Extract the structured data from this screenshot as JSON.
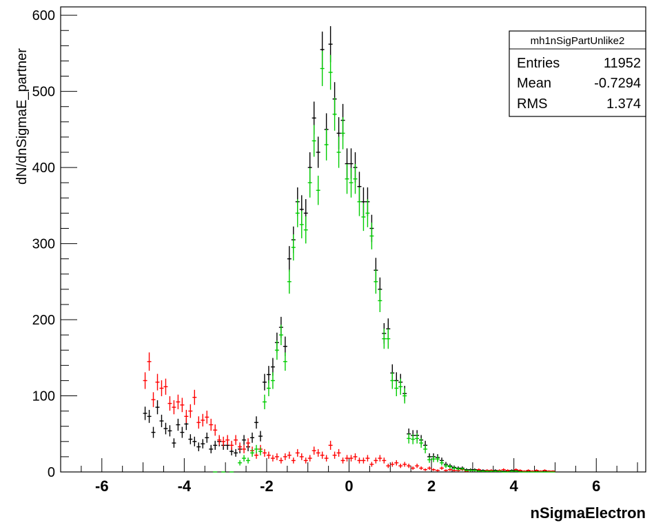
{
  "chart_data": {
    "type": "scatter",
    "xlabel": "nSigmaElectron",
    "ylabel": "dN/dnSigmaE_partner",
    "xlim": [
      -7,
      7.2
    ],
    "ylim": [
      0,
      600
    ],
    "x_ticks": [
      -6,
      -4,
      -2,
      0,
      2,
      4,
      6
    ],
    "y_ticks": [
      0,
      100,
      200,
      300,
      400,
      500,
      600
    ],
    "grid": false,
    "stats_box": {
      "title": "mh1nSigPartUnlike2",
      "rows": [
        {
          "label": "Entries",
          "value": "11952"
        },
        {
          "label": "Mean",
          "value": "-0.7294"
        },
        {
          "label": "RMS",
          "value": "1.374"
        }
      ]
    },
    "series": [
      {
        "color": "#000000",
        "points": [
          [
            -4.95,
            77
          ],
          [
            -4.85,
            73
          ],
          [
            -4.75,
            52
          ],
          [
            -4.65,
            85
          ],
          [
            -4.55,
            67
          ],
          [
            -4.45,
            57
          ],
          [
            -4.35,
            54
          ],
          [
            -4.25,
            38
          ],
          [
            -4.15,
            62
          ],
          [
            -4.05,
            52
          ],
          [
            -3.95,
            63
          ],
          [
            -3.85,
            43
          ],
          [
            -3.75,
            40
          ],
          [
            -3.65,
            33
          ],
          [
            -3.55,
            37
          ],
          [
            -3.45,
            45
          ],
          [
            -3.35,
            30
          ],
          [
            -3.25,
            35
          ],
          [
            -3.15,
            40
          ],
          [
            -3.05,
            35
          ],
          [
            -2.95,
            35
          ],
          [
            -2.85,
            27
          ],
          [
            -2.75,
            25
          ],
          [
            -2.65,
            30
          ],
          [
            -2.55,
            42
          ],
          [
            -2.45,
            33
          ],
          [
            -2.35,
            45
          ],
          [
            -2.25,
            65
          ],
          [
            -2.15,
            47
          ],
          [
            -2.05,
            118
          ],
          [
            -1.95,
            128
          ],
          [
            -1.85,
            138
          ],
          [
            -1.75,
            170
          ],
          [
            -1.65,
            190
          ],
          [
            -1.55,
            165
          ],
          [
            -1.45,
            280
          ],
          [
            -1.35,
            305
          ],
          [
            -1.25,
            355
          ],
          [
            -1.15,
            345
          ],
          [
            -1.05,
            340
          ],
          [
            -0.95,
            400
          ],
          [
            -0.85,
            465
          ],
          [
            -0.75,
            420
          ],
          [
            -0.65,
            555
          ],
          [
            -0.55,
            450
          ],
          [
            -0.45,
            562
          ],
          [
            -0.35,
            490
          ],
          [
            -0.25,
            445
          ],
          [
            -0.15,
            462
          ],
          [
            -0.05,
            405
          ],
          [
            0.05,
            405
          ],
          [
            0.15,
            400
          ],
          [
            0.25,
            375
          ],
          [
            0.35,
            355
          ],
          [
            0.45,
            355
          ],
          [
            0.55,
            320
          ],
          [
            0.65,
            265
          ],
          [
            0.75,
            240
          ],
          [
            0.85,
            182
          ],
          [
            0.95,
            188
          ],
          [
            1.05,
            130
          ],
          [
            1.15,
            120
          ],
          [
            1.25,
            118
          ],
          [
            1.35,
            103
          ],
          [
            1.45,
            50
          ],
          [
            1.55,
            48
          ],
          [
            1.65,
            48
          ],
          [
            1.75,
            42
          ],
          [
            1.85,
            35
          ],
          [
            1.95,
            20
          ],
          [
            2.05,
            20
          ],
          [
            2.15,
            19
          ],
          [
            2.25,
            15
          ],
          [
            2.35,
            10
          ],
          [
            2.45,
            8
          ],
          [
            2.55,
            6
          ],
          [
            2.65,
            5
          ],
          [
            2.75,
            5
          ],
          [
            2.85,
            3
          ],
          [
            2.95,
            3
          ],
          [
            3.05,
            3
          ],
          [
            3.15,
            2
          ],
          [
            3.25,
            2
          ],
          [
            3.35,
            2
          ],
          [
            3.45,
            2
          ],
          [
            3.55,
            2
          ],
          [
            3.65,
            1
          ],
          [
            3.75,
            1
          ],
          [
            3.85,
            1
          ],
          [
            3.95,
            2
          ],
          [
            4.05,
            2
          ],
          [
            4.15,
            1
          ],
          [
            4.25,
            1
          ],
          [
            4.35,
            1
          ],
          [
            4.45,
            1
          ],
          [
            4.55,
            1
          ],
          [
            4.65,
            1
          ],
          [
            4.75,
            1
          ],
          [
            4.85,
            1
          ],
          [
            4.95,
            1
          ]
        ]
      },
      {
        "color": "#ff0000",
        "points": [
          [
            -4.95,
            120
          ],
          [
            -4.85,
            145
          ],
          [
            -4.75,
            95
          ],
          [
            -4.65,
            118
          ],
          [
            -4.55,
            110
          ],
          [
            -4.45,
            112
          ],
          [
            -4.35,
            90
          ],
          [
            -4.25,
            85
          ],
          [
            -4.15,
            92
          ],
          [
            -4.05,
            88
          ],
          [
            -3.95,
            73
          ],
          [
            -3.85,
            80
          ],
          [
            -3.75,
            98
          ],
          [
            -3.65,
            65
          ],
          [
            -3.55,
            68
          ],
          [
            -3.45,
            72
          ],
          [
            -3.35,
            62
          ],
          [
            -3.25,
            55
          ],
          [
            -3.15,
            42
          ],
          [
            -3.05,
            40
          ],
          [
            -2.95,
            42
          ],
          [
            -2.85,
            35
          ],
          [
            -2.75,
            42
          ],
          [
            -2.65,
            33
          ],
          [
            -2.55,
            30
          ],
          [
            -2.45,
            38
          ],
          [
            -2.35,
            28
          ],
          [
            -2.25,
            22
          ],
          [
            -2.15,
            30
          ],
          [
            -2.05,
            25
          ],
          [
            -1.95,
            22
          ],
          [
            -1.85,
            18
          ],
          [
            -1.75,
            20
          ],
          [
            -1.65,
            15
          ],
          [
            -1.55,
            20
          ],
          [
            -1.45,
            22
          ],
          [
            -1.35,
            15
          ],
          [
            -1.25,
            25
          ],
          [
            -1.15,
            20
          ],
          [
            -1.05,
            15
          ],
          [
            -0.95,
            18
          ],
          [
            -0.85,
            28
          ],
          [
            -0.75,
            25
          ],
          [
            -0.65,
            22
          ],
          [
            -0.55,
            18
          ],
          [
            -0.45,
            35
          ],
          [
            -0.35,
            22
          ],
          [
            -0.25,
            25
          ],
          [
            -0.15,
            15
          ],
          [
            -0.05,
            18
          ],
          [
            0.05,
            18
          ],
          [
            0.15,
            20
          ],
          [
            0.25,
            15
          ],
          [
            0.35,
            15
          ],
          [
            0.45,
            18
          ],
          [
            0.55,
            10
          ],
          [
            0.65,
            15
          ],
          [
            0.75,
            18
          ],
          [
            0.85,
            15
          ],
          [
            0.95,
            8
          ],
          [
            1.05,
            10
          ],
          [
            1.15,
            12
          ],
          [
            1.25,
            8
          ],
          [
            1.35,
            10
          ],
          [
            1.45,
            8
          ],
          [
            1.55,
            5
          ],
          [
            1.65,
            8
          ],
          [
            1.75,
            5
          ],
          [
            1.85,
            3
          ],
          [
            1.95,
            5
          ],
          [
            2.05,
            3
          ],
          [
            2.15,
            2
          ],
          [
            2.25,
            5
          ],
          [
            2.35,
            2
          ],
          [
            2.45,
            3
          ],
          [
            2.55,
            2
          ],
          [
            2.65,
            2
          ],
          [
            2.75,
            3
          ],
          [
            2.85,
            1
          ],
          [
            2.95,
            2
          ],
          [
            3.05,
            2
          ],
          [
            3.15,
            3
          ],
          [
            3.25,
            1
          ],
          [
            3.35,
            2
          ],
          [
            3.45,
            2
          ],
          [
            3.55,
            1
          ],
          [
            3.65,
            2
          ],
          [
            3.75,
            3
          ],
          [
            3.85,
            2
          ],
          [
            3.95,
            1
          ],
          [
            4.05,
            3
          ],
          [
            4.15,
            2
          ],
          [
            4.25,
            1
          ],
          [
            4.35,
            2
          ],
          [
            4.45,
            1
          ],
          [
            4.55,
            2
          ],
          [
            4.65,
            1
          ],
          [
            4.75,
            2
          ],
          [
            4.85,
            1
          ],
          [
            4.95,
            1
          ]
        ]
      },
      {
        "color": "#00cc00",
        "points": [
          [
            -3.25,
            0
          ],
          [
            -3.05,
            0
          ],
          [
            -2.85,
            0
          ],
          [
            -2.65,
            12
          ],
          [
            -2.55,
            18
          ],
          [
            -2.45,
            15
          ],
          [
            -2.35,
            25
          ],
          [
            -2.25,
            30
          ],
          [
            -2.15,
            27
          ],
          [
            -2.05,
            92
          ],
          [
            -1.95,
            110
          ],
          [
            -1.85,
            120
          ],
          [
            -1.75,
            160
          ],
          [
            -1.65,
            180
          ],
          [
            -1.55,
            145
          ],
          [
            -1.45,
            250
          ],
          [
            -1.35,
            295
          ],
          [
            -1.25,
            340
          ],
          [
            -1.15,
            325
          ],
          [
            -1.05,
            318
          ],
          [
            -0.95,
            380
          ],
          [
            -0.85,
            435
          ],
          [
            -0.75,
            370
          ],
          [
            -0.65,
            530
          ],
          [
            -0.55,
            430
          ],
          [
            -0.45,
            525
          ],
          [
            -0.35,
            470
          ],
          [
            -0.25,
            420
          ],
          [
            -0.15,
            445
          ],
          [
            -0.05,
            385
          ],
          [
            0.05,
            380
          ],
          [
            0.15,
            385
          ],
          [
            0.25,
            355
          ],
          [
            0.35,
            335
          ],
          [
            0.45,
            340
          ],
          [
            0.55,
            310
          ],
          [
            0.65,
            250
          ],
          [
            0.75,
            225
          ],
          [
            0.85,
            175
          ],
          [
            0.95,
            175
          ],
          [
            1.05,
            120
          ],
          [
            1.15,
            110
          ],
          [
            1.25,
            112
          ],
          [
            1.35,
            100
          ],
          [
            1.45,
            44
          ],
          [
            1.55,
            43
          ],
          [
            1.65,
            44
          ],
          [
            1.75,
            38
          ],
          [
            1.85,
            30
          ],
          [
            1.95,
            16
          ],
          [
            2.05,
            17
          ],
          [
            2.15,
            17
          ],
          [
            2.25,
            12
          ],
          [
            2.35,
            8
          ],
          [
            2.45,
            7
          ],
          [
            2.55,
            5
          ],
          [
            2.65,
            4
          ],
          [
            2.75,
            4
          ],
          [
            2.85,
            2
          ],
          [
            2.95,
            2
          ],
          [
            3.05,
            2
          ],
          [
            3.15,
            1
          ],
          [
            3.25,
            1
          ],
          [
            3.35,
            1
          ],
          [
            3.45,
            1
          ],
          [
            3.55,
            1
          ],
          [
            3.65,
            1
          ],
          [
            3.75,
            0
          ],
          [
            3.85,
            0
          ],
          [
            3.95,
            1
          ],
          [
            4.05,
            1
          ],
          [
            4.15,
            0
          ],
          [
            4.25,
            0
          ],
          [
            4.35,
            0
          ],
          [
            4.45,
            0
          ],
          [
            4.55,
            0
          ],
          [
            4.65,
            0
          ],
          [
            4.75,
            0
          ],
          [
            4.85,
            0
          ],
          [
            4.95,
            0
          ]
        ]
      }
    ]
  }
}
